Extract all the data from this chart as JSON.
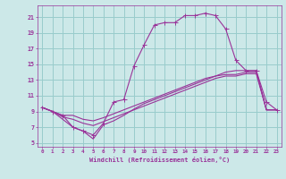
{
  "xlabel": "Windchill (Refroidissement éolien,°C)",
  "bg_color": "#cce8e8",
  "line_color": "#993399",
  "grid_color": "#99cccc",
  "xticks": [
    0,
    1,
    2,
    3,
    4,
    5,
    6,
    7,
    8,
    9,
    10,
    11,
    12,
    13,
    14,
    15,
    16,
    17,
    18,
    19,
    20,
    21,
    22,
    23
  ],
  "yticks": [
    5,
    7,
    9,
    11,
    13,
    15,
    17,
    19,
    21
  ],
  "xlim": [
    -0.5,
    23.5
  ],
  "ylim": [
    4.5,
    22.5
  ],
  "line1_x": [
    0,
    1,
    2,
    3,
    4,
    5,
    6,
    7,
    8,
    9,
    10,
    11,
    12,
    13,
    14,
    15,
    16,
    17,
    18,
    19,
    20,
    21,
    22,
    23
  ],
  "line1_y": [
    9.5,
    9.0,
    8.5,
    7.0,
    6.5,
    6.0,
    7.5,
    10.2,
    10.5,
    14.8,
    17.5,
    20.0,
    20.3,
    20.3,
    21.2,
    21.2,
    21.5,
    21.2,
    19.5,
    15.5,
    14.2,
    14.2,
    10.2,
    9.2
  ],
  "line2_x": [
    0,
    1,
    2,
    3,
    4,
    5,
    6,
    7,
    8,
    9,
    10,
    11,
    12,
    13,
    14,
    15,
    16,
    17,
    18,
    19,
    20,
    21,
    22,
    23
  ],
  "line2_y": [
    9.5,
    9.0,
    8.5,
    8.5,
    8.0,
    7.8,
    8.2,
    8.7,
    9.2,
    9.7,
    10.2,
    10.7,
    11.2,
    11.7,
    12.2,
    12.7,
    13.2,
    13.5,
    13.7,
    13.7,
    14.0,
    14.0,
    9.2,
    9.2
  ],
  "line3_x": [
    0,
    1,
    2,
    3,
    4,
    5,
    6,
    7,
    8,
    9,
    10,
    11,
    12,
    13,
    14,
    15,
    16,
    17,
    18,
    19,
    20,
    21,
    22,
    23
  ],
  "line3_y": [
    9.5,
    9.0,
    8.3,
    8.0,
    7.5,
    7.2,
    7.7,
    8.2,
    8.7,
    9.2,
    9.7,
    10.2,
    10.7,
    11.2,
    11.7,
    12.2,
    12.7,
    13.2,
    13.5,
    13.5,
    13.8,
    13.8,
    9.2,
    9.2
  ],
  "line4_x": [
    0,
    1,
    2,
    3,
    4,
    5,
    6,
    7,
    8,
    9,
    10,
    11,
    12,
    13,
    14,
    15,
    16,
    17,
    18,
    19,
    20,
    21,
    22,
    23
  ],
  "line4_y": [
    9.5,
    9.0,
    8.0,
    7.0,
    6.5,
    5.5,
    7.3,
    7.8,
    8.5,
    9.3,
    10.0,
    10.5,
    11.0,
    11.5,
    12.0,
    12.5,
    13.0,
    13.5,
    14.0,
    14.2,
    14.2,
    14.2,
    9.2,
    9.2
  ]
}
